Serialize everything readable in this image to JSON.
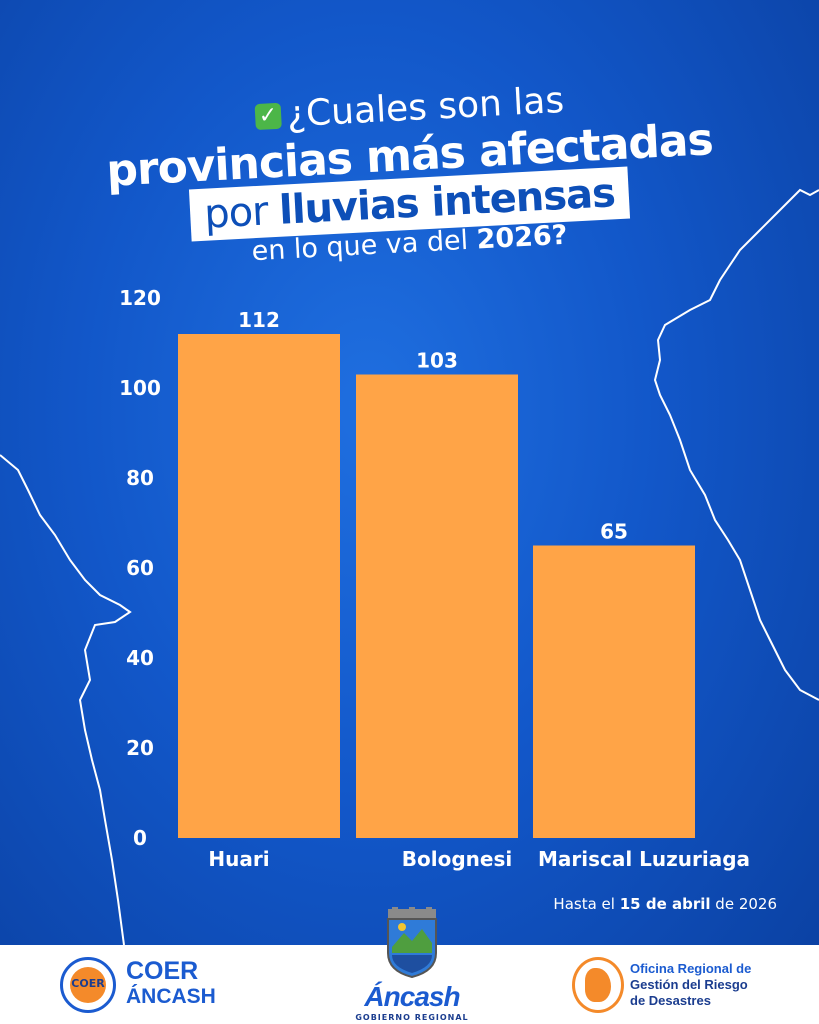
{
  "title": {
    "line1": "¿Cuales son las",
    "line2": "provincias más afectadas",
    "line3_prefix": "por",
    "line3_bold": "lluvias intensas",
    "line4_prefix": "en lo que va del",
    "line4_bold": "2026?"
  },
  "icons": {
    "check": "check-mark-button-icon"
  },
  "colors": {
    "background": "#1257c9",
    "bar": "#ffa447",
    "text": "#ffffff",
    "title_highlight": "#0d4fb8"
  },
  "chart_data": {
    "type": "bar",
    "categories": [
      "Huari",
      "Bolognesi",
      "Mariscal Luzuriaga"
    ],
    "values": [
      112,
      103,
      65
    ],
    "data_labels": [
      "112",
      "103",
      "65"
    ],
    "yticks": [
      0,
      20,
      40,
      60,
      80,
      100,
      120
    ],
    "ylim": [
      0,
      120
    ],
    "grid": false,
    "legend": "none"
  },
  "note": {
    "prefix": "Hasta el",
    "bold": "15 de abril",
    "suffix": "de 2026"
  },
  "footer": {
    "coer_badge": "COER",
    "coer_name": "COER",
    "coer_sub": "ÁNCASH",
    "ancash_name": "Áncash",
    "ancash_sub": "GOBIERNO REGIONAL",
    "org_line1": "Oficina Regional de",
    "org_line2": "Gestión del Riesgo",
    "org_line3": "de Desastres"
  }
}
